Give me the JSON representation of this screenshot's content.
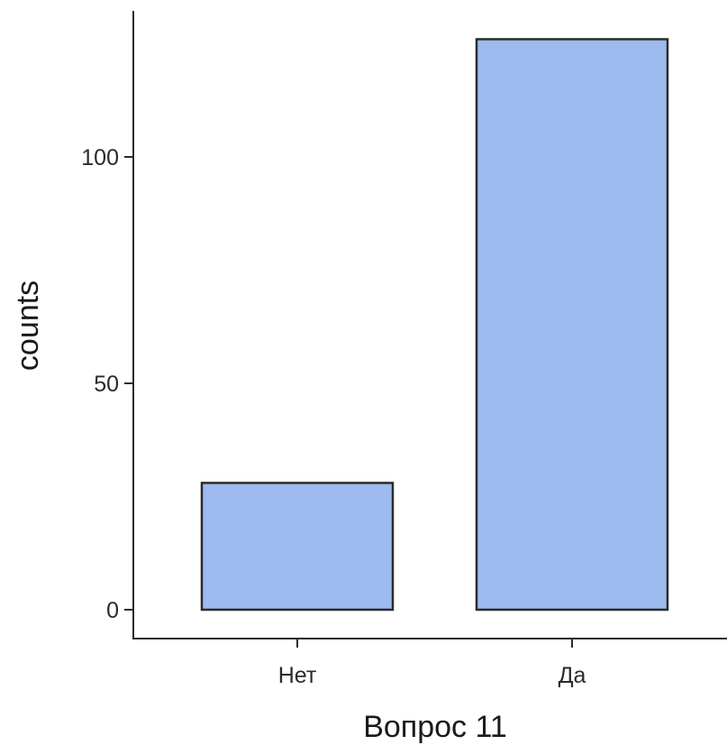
{
  "chart_data": {
    "type": "bar",
    "categories": [
      "Нет",
      "Да"
    ],
    "values": [
      28,
      126
    ],
    "xlabel": "Вопрос 11",
    "ylabel": "counts",
    "ylim": [
      0,
      130
    ],
    "yticks": [
      0,
      50,
      100
    ],
    "grid": false,
    "legend": "none",
    "colors": {
      "bar_fill": "#9dbbef",
      "bar_stroke": "#2b2b2b",
      "axis": "#2b2b2b"
    }
  }
}
